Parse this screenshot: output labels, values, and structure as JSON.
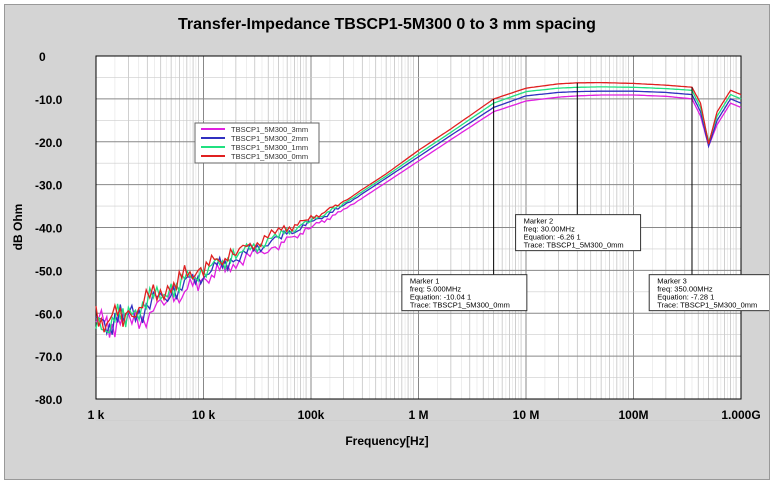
{
  "chart_data": {
    "type": "line",
    "title": "Transfer-Impedance TBSCP1-5M300    0 to 3 mm spacing",
    "xlabel": "Frequency[Hz]",
    "ylabel": "dB Ohm",
    "xscale": "log",
    "xlim": [
      1000,
      1000000000
    ],
    "ylim": [
      -80,
      0
    ],
    "grid": true,
    "xticks": [
      {
        "v": 1000,
        "label": "1  k"
      },
      {
        "v": 10000,
        "label": "10 k"
      },
      {
        "v": 100000,
        "label": "100k"
      },
      {
        "v": 1000000,
        "label": "1  M"
      },
      {
        "v": 10000000,
        "label": "10 M"
      },
      {
        "v": 100000000,
        "label": "100M"
      },
      {
        "v": 1000000000,
        "label": "1.000G"
      }
    ],
    "yticks": [
      {
        "v": 0,
        "label": "0"
      },
      {
        "v": -10,
        "label": "-10.0"
      },
      {
        "v": -20,
        "label": "-20.0"
      },
      {
        "v": -30,
        "label": "-30.0"
      },
      {
        "v": -40,
        "label": "-40.0"
      },
      {
        "v": -50,
        "label": "-50.0"
      },
      {
        "v": -60,
        "label": "-60.0"
      },
      {
        "v": -70,
        "label": "-70.0"
      },
      {
        "v": -80,
        "label": "-80.0"
      }
    ],
    "legend_placement": "upper-left",
    "x": [
      1000,
      2000,
      5000,
      10000,
      20000,
      50000,
      100000,
      200000,
      500000,
      1000000,
      2000000,
      5000000,
      10000000,
      20000000,
      30000000,
      50000000,
      100000000,
      200000000,
      350000000,
      420000000,
      500000000,
      600000000,
      800000000,
      1000000000
    ],
    "series": [
      {
        "name": "TBSCP1_5M300_3mm",
        "color": "#e020e0",
        "values": [
          -62,
          -63,
          -57,
          -52,
          -48,
          -44,
          -40,
          -36,
          -29.5,
          -24.5,
          -19.5,
          -13,
          -10.5,
          -9.6,
          -9.3,
          -9.1,
          -9.1,
          -9.4,
          -10,
          -14,
          -21,
          -16,
          -11,
          -12
        ]
      },
      {
        "name": "TBSCP1_5M300_2mm",
        "color": "#3030c0",
        "values": [
          -63,
          -61,
          -55,
          -50.5,
          -47,
          -42.5,
          -39,
          -35,
          -28.5,
          -23.5,
          -18.5,
          -12,
          -9.3,
          -8.5,
          -8.3,
          -8.2,
          -8.2,
          -8.5,
          -9,
          -13,
          -21,
          -15,
          -10,
          -11
        ]
      },
      {
        "name": "TBSCP1_5M300_1mm",
        "color": "#20e080",
        "values": [
          -64,
          -60,
          -54,
          -50,
          -46.5,
          -42,
          -38.5,
          -34.5,
          -28,
          -22.8,
          -17.8,
          -11,
          -8.3,
          -7.5,
          -7.3,
          -7.2,
          -7.3,
          -7.6,
          -8,
          -12,
          -20,
          -14,
          -9,
          -10
        ]
      },
      {
        "name": "TBSCP1_5M300_0mm",
        "color": "#e02020",
        "values": [
          -62,
          -60,
          -53,
          -49,
          -46,
          -41,
          -38,
          -34,
          -27.5,
          -22,
          -17,
          -10.04,
          -7.5,
          -6.5,
          -6.26,
          -6.2,
          -6.4,
          -6.8,
          -7.28,
          -11,
          -20.5,
          -13,
          -8,
          -9
        ]
      }
    ],
    "markers": [
      {
        "title": "Marker 1",
        "freq": "freq: 5.000MHz",
        "equation": "Equation: -10.04 1",
        "trace": "Trace: TBSCP1_5M300_0mm",
        "x": 5000000,
        "y": -10.04,
        "box_x": 700000,
        "box_y": -51
      },
      {
        "title": "Marker 2",
        "freq": "freq: 30.00MHz",
        "equation": "Equation: -6.26 1",
        "trace": "Trace: TBSCP1_5M300_0mm",
        "x": 30000000,
        "y": -6.26,
        "box_x": 8000000,
        "box_y": -37
      },
      {
        "title": "Marker 3",
        "freq": "freq: 350.00MHz",
        "equation": "Equation: -7.28 1",
        "trace": "Trace: TBSCP1_5M300_0mm",
        "x": 350000000,
        "y": -7.28,
        "box_x": 140000000,
        "box_y": -51
      }
    ]
  }
}
